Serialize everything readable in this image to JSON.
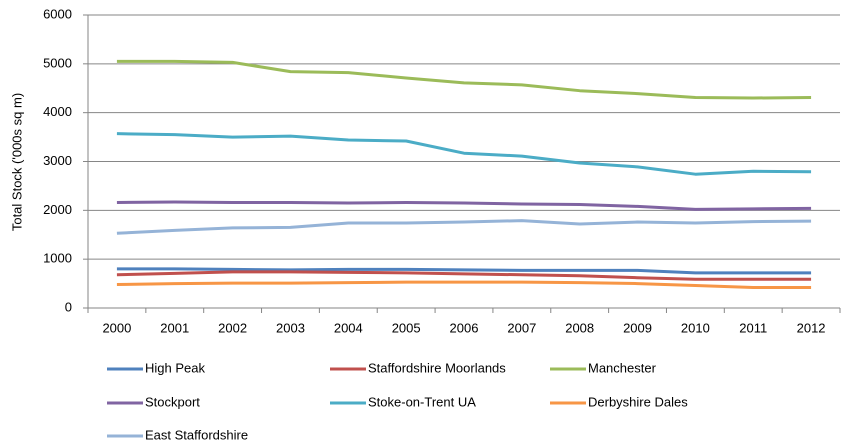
{
  "chart_data": {
    "type": "line",
    "y_label": "Total Stock ('000s sq m)",
    "categories": [
      "2000",
      "2001",
      "2002",
      "2003",
      "2004",
      "2005",
      "2006",
      "2007",
      "2008",
      "2009",
      "2010",
      "2011",
      "2012"
    ],
    "ylim": [
      0,
      6000
    ],
    "yticks": [
      0,
      1000,
      2000,
      3000,
      4000,
      5000,
      6000
    ],
    "grid": true,
    "legend": "bottom",
    "series": [
      {
        "name": "High Peak",
        "color": "#4f81bd",
        "values": [
          800,
          800,
          790,
          780,
          790,
          790,
          780,
          770,
          770,
          770,
          720,
          720,
          720
        ]
      },
      {
        "name": "Staffordshire Moorlands",
        "color": "#c0504d",
        "values": [
          680,
          710,
          740,
          740,
          730,
          720,
          700,
          680,
          660,
          620,
          590,
          590,
          590
        ]
      },
      {
        "name": "Manchester",
        "color": "#9bbb59",
        "values": [
          5050,
          5050,
          5030,
          4840,
          4820,
          4710,
          4610,
          4570,
          4450,
          4390,
          4310,
          4300,
          4310
        ]
      },
      {
        "name": "Stockport",
        "color": "#8064a2",
        "values": [
          2160,
          2170,
          2160,
          2160,
          2150,
          2160,
          2150,
          2130,
          2120,
          2080,
          2020,
          2030,
          2040
        ]
      },
      {
        "name": "Stoke-on-Trent UA",
        "color": "#4bacc6",
        "values": [
          3570,
          3550,
          3500,
          3520,
          3440,
          3420,
          3170,
          3110,
          2970,
          2890,
          2740,
          2800,
          2790
        ]
      },
      {
        "name": "Derbyshire Dales",
        "color": "#f79646",
        "values": [
          480,
          500,
          510,
          510,
          520,
          530,
          530,
          530,
          520,
          500,
          460,
          420,
          420
        ]
      },
      {
        "name": "East Staffordshire",
        "color": "#95b3d7",
        "values": [
          1530,
          1590,
          1640,
          1650,
          1740,
          1740,
          1760,
          1790,
          1720,
          1760,
          1740,
          1770,
          1780
        ]
      }
    ]
  }
}
